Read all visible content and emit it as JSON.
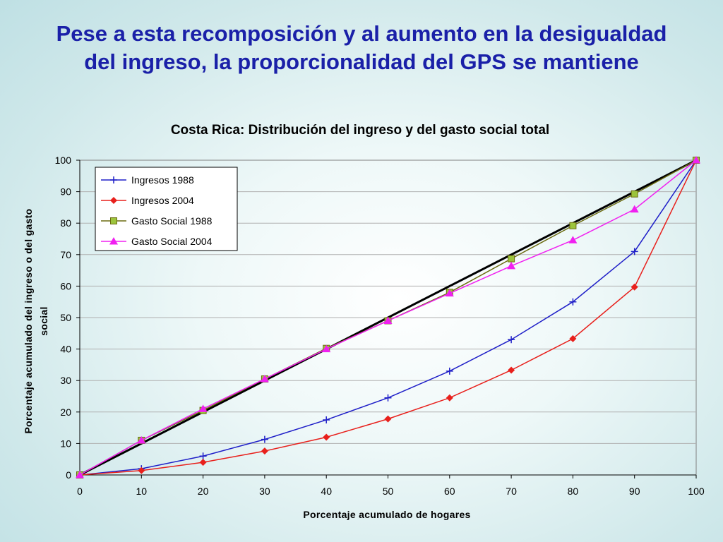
{
  "slide": {
    "title_line1": "Pese a esta recomposición y al aumento en la desigualdad",
    "title_line2": "del ingreso, la proporcionalidad del GPS se mantiene"
  },
  "chart_data": {
    "type": "line",
    "title": "Costa Rica: Distribución del ingreso y del gasto social total",
    "xlabel": "Porcentaje acumulado de hogares",
    "ylabel_line1": "Porcentaje acumulado del ingreso o del gasto",
    "ylabel_line2": "social",
    "x": [
      0,
      10,
      20,
      30,
      40,
      50,
      60,
      70,
      80,
      90,
      100
    ],
    "xlim": [
      0,
      100
    ],
    "ylim": [
      0,
      100
    ],
    "xticks": [
      "0",
      "10",
      "20",
      "30",
      "40",
      "50",
      "60",
      "70",
      "80",
      "90",
      "100"
    ],
    "yticks": [
      "0",
      "10",
      "20",
      "30",
      "40",
      "50",
      "60",
      "70",
      "80",
      "90",
      "100"
    ],
    "grid": true,
    "legend_position": "top-left",
    "reference_line": {
      "x": [
        0,
        100
      ],
      "y": [
        0,
        100
      ],
      "color": "#000000"
    },
    "series": [
      {
        "name": "Ingresos 1988",
        "color": "#1f1fc8",
        "marker": "plus",
        "values": [
          0,
          2,
          6,
          11.3,
          17.5,
          24.5,
          33,
          43,
          55,
          71,
          100
        ]
      },
      {
        "name": "Ingresos 2004",
        "color": "#e8201c",
        "marker": "diamond",
        "values": [
          0,
          1.4,
          4,
          7.6,
          12,
          17.8,
          24.5,
          33.3,
          43.3,
          59.7,
          100
        ]
      },
      {
        "name": "Gasto Social 1988",
        "color": "#6b6b10",
        "marker": "square",
        "marker_fill": "#9cc43c",
        "values": [
          0,
          11,
          20.5,
          30.5,
          40.2,
          49,
          58,
          68.7,
          79.2,
          89.3,
          100
        ]
      },
      {
        "name": "Gasto Social 2004",
        "color": "#f020f0",
        "marker": "triangle",
        "values": [
          0,
          11,
          21,
          30.5,
          40,
          49,
          57.7,
          66.4,
          74.6,
          84.4,
          100
        ]
      }
    ]
  }
}
